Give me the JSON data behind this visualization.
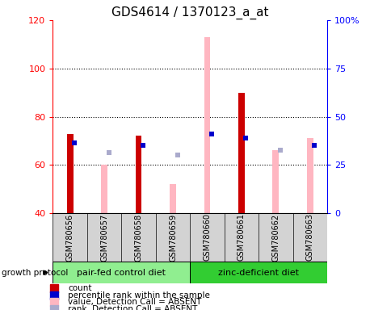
{
  "title": "GDS4614 / 1370123_a_at",
  "samples": [
    "GSM780656",
    "GSM780657",
    "GSM780658",
    "GSM780659",
    "GSM780660",
    "GSM780661",
    "GSM780662",
    "GSM780663"
  ],
  "count_values": [
    73,
    null,
    72,
    null,
    null,
    90,
    null,
    null
  ],
  "rank_values": [
    69,
    null,
    68,
    null,
    73,
    71,
    null,
    68
  ],
  "value_absent": [
    null,
    60,
    72,
    52,
    113,
    null,
    66,
    71
  ],
  "rank_absent": [
    null,
    65,
    68,
    64,
    73,
    null,
    66,
    68
  ],
  "ylim_left": [
    40,
    120
  ],
  "ylim_right": [
    0,
    100
  ],
  "yticks_left": [
    40,
    60,
    80,
    100,
    120
  ],
  "yticks_right": [
    0,
    25,
    50,
    75,
    100
  ],
  "yticklabels_right": [
    "0",
    "25",
    "50",
    "75",
    "100%"
  ],
  "count_color": "#CC0000",
  "rank_color": "#0000CC",
  "value_absent_color": "#FFB6C1",
  "rank_absent_color": "#AAAACC",
  "group_colors": [
    "#90EE90",
    "#32CD32"
  ],
  "group_labels": [
    "pair-fed control diet",
    "zinc-deficient diet"
  ],
  "group_split": 4,
  "title_fontsize": 11,
  "tick_fontsize": 8,
  "legend_items": [
    {
      "color": "#CC0000",
      "label": "count"
    },
    {
      "color": "#0000CC",
      "label": "percentile rank within the sample"
    },
    {
      "color": "#FFB6C1",
      "label": "value, Detection Call = ABSENT"
    },
    {
      "color": "#AAAACC",
      "label": "rank, Detection Call = ABSENT"
    }
  ]
}
